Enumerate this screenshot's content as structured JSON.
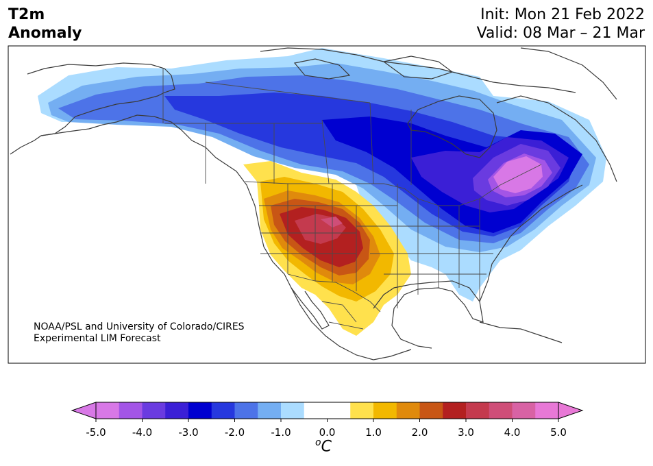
{
  "header": {
    "title_line1": "T2m",
    "title_line2": "Anomaly",
    "init_text": "Init: Mon 21 Feb 2022",
    "valid_text": "Valid: 08 Mar – 21 Mar"
  },
  "credit": {
    "line1": "NOAA/PSL and University of Colorado/CIRES",
    "line2": "Experimental LIM Forecast"
  },
  "colorbar": {
    "ticks": [
      "-5.0",
      "-4.0",
      "-3.0",
      "-2.0",
      "-1.0",
      "0.0",
      "1.0",
      "2.0",
      "3.0",
      "4.0",
      "5.0"
    ],
    "unit_symbol": "o",
    "unit_letter": "C",
    "levels": [
      -5.0,
      -4.5,
      -4.0,
      -3.5,
      -3.0,
      -2.5,
      -2.0,
      -1.5,
      -1.0,
      -0.5,
      0.5,
      1.0,
      1.5,
      2.0,
      2.5,
      3.0,
      3.5,
      4.0,
      4.5,
      5.0
    ],
    "colors": [
      "#d878e6",
      "#a355e6",
      "#6a3be0",
      "#3b1fd6",
      "#0000d0",
      "#2638de",
      "#4d73e8",
      "#74aef2",
      "#abdcff",
      "#ffffff",
      "#ffe14d",
      "#f2b800",
      "#e08a0c",
      "#c85615",
      "#b32020",
      "#c43a4e",
      "#cf4e78",
      "#d862a4",
      "#e878d6"
    ],
    "under_color": "#d878e6",
    "over_color": "#e878d6"
  },
  "map_regions": {
    "cold_anomalies": [
      {
        "name": "alaska-canada-north",
        "value": -1.5
      },
      {
        "name": "canada-central",
        "value": -3.0
      },
      {
        "name": "great-lakes-northeast",
        "value": -3.0
      },
      {
        "name": "quebec-core",
        "value": -5.0
      },
      {
        "name": "southeast-us",
        "value": -1.0
      }
    ],
    "warm_anomalies": [
      {
        "name": "southwest-us-core",
        "value": 4.0
      },
      {
        "name": "southwest-us",
        "value": 3.0
      },
      {
        "name": "mexico-north",
        "value": 1.0
      }
    ]
  }
}
